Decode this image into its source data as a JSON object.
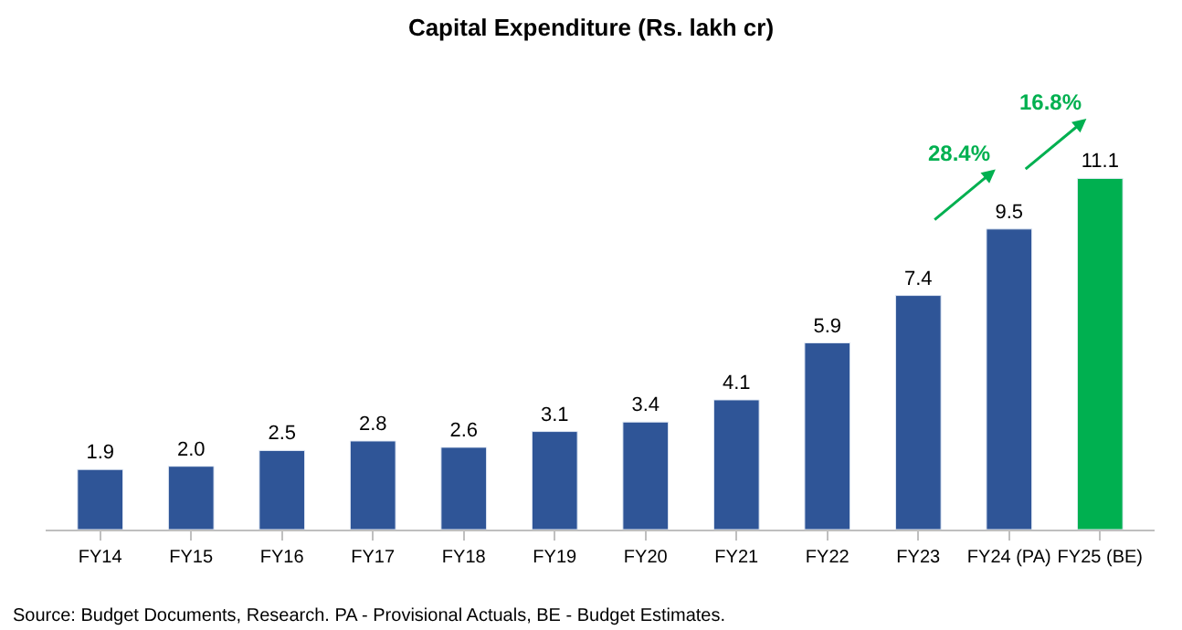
{
  "chart_data": {
    "type": "bar",
    "title": "Capital Expenditure (Rs. lakh cr)",
    "categories": [
      "FY14",
      "FY15",
      "FY16",
      "FY17",
      "FY18",
      "FY19",
      "FY20",
      "FY21",
      "FY22",
      "FY23",
      "FY24 (PA)",
      "FY25 (BE)"
    ],
    "values": [
      1.9,
      2.0,
      2.5,
      2.8,
      2.6,
      3.1,
      3.4,
      4.1,
      5.9,
      7.4,
      9.5,
      11.1
    ],
    "colors": [
      "#2f5597",
      "#2f5597",
      "#2f5597",
      "#2f5597",
      "#2f5597",
      "#2f5597",
      "#2f5597",
      "#2f5597",
      "#2f5597",
      "#2f5597",
      "#2f5597",
      "#00b050"
    ],
    "value_labels": [
      "1.9",
      "2.0",
      "2.5",
      "2.8",
      "2.6",
      "3.1",
      "3.4",
      "4.1",
      "5.9",
      "7.4",
      "9.5",
      "11.1"
    ],
    "tick_labels": "x",
    "annotations": [
      "28.4%",
      "16.8%",
      "Source: Budget Documents, Research. PA - Provisional Actuals, BE - Budget Estimates."
    ]
  }
}
